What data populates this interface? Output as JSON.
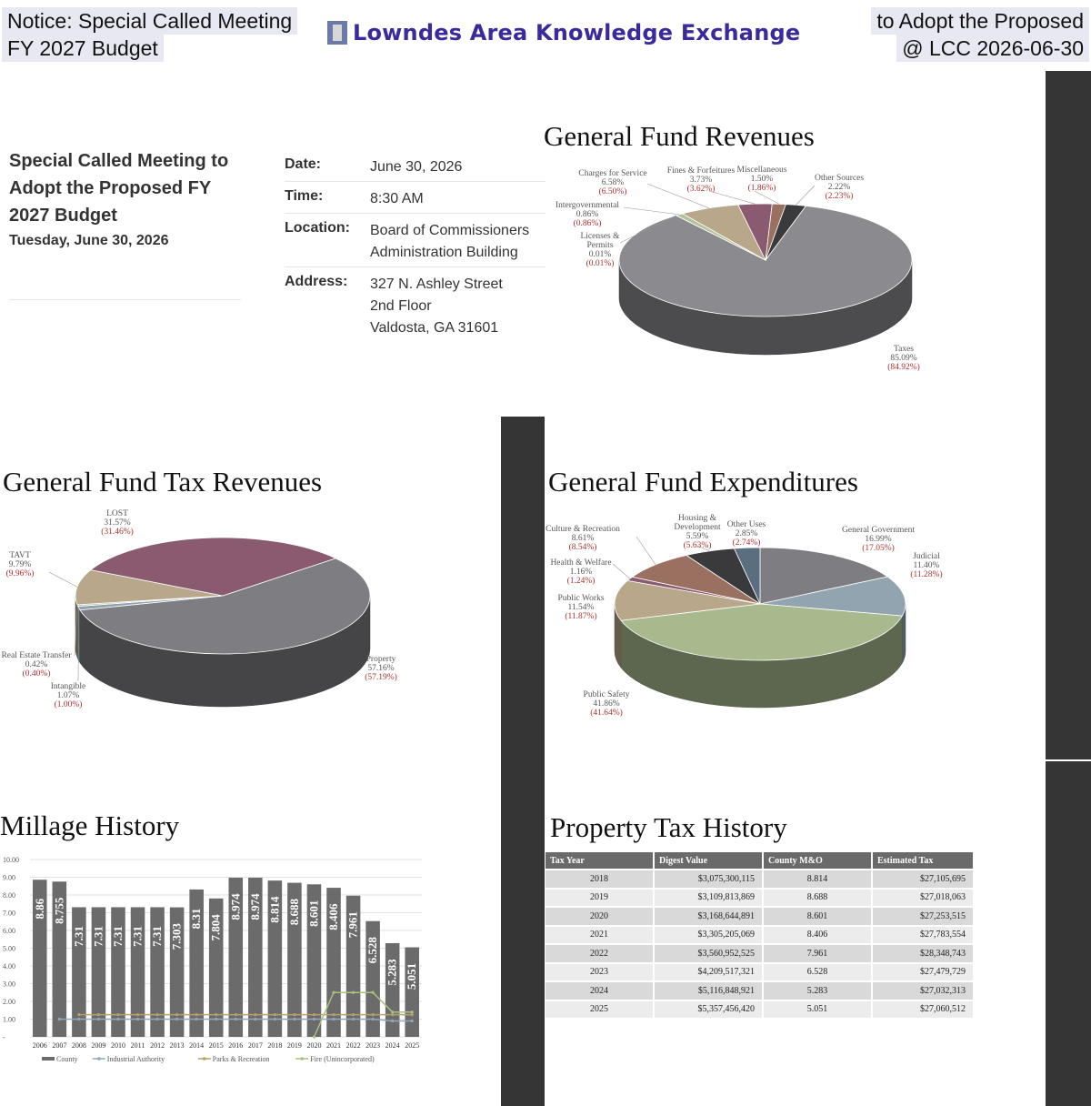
{
  "header": {
    "left_line1": "Notice: Special Called Meeting",
    "left_line2": "FY 2027 Budget",
    "logo_text": "Lowndes Area Knowledge Exchange",
    "right_line1": "to Adopt the Proposed",
    "right_line2": "@ LCC 2026-06-30"
  },
  "meeting": {
    "title": "Special Called Meeting to Adopt the Proposed FY 2027 Budget",
    "day": "Tuesday, June 30, 2026",
    "date_label": "Date:",
    "date_value": "June 30, 2026",
    "time_label": "Time:",
    "time_value": "8:30 AM",
    "location_label": "Location:",
    "location_line1": "Board of Commissioners",
    "location_line2": "Administration Building",
    "address_label": "Address:",
    "address_line1": "327 N. Ashley Street",
    "address_line2": "2nd Floor",
    "address_line3": "Valdosta, GA 31601"
  },
  "chart_data": [
    {
      "type": "pie",
      "title": "General Fund Revenues",
      "slices": [
        {
          "label": "Taxes",
          "value": 85.09,
          "prior": "(84.92%)",
          "color": "#8a8a8f"
        },
        {
          "label": "Licenses & Permits",
          "value": 0.01,
          "prior": "(0.01%)",
          "color": "#8fa3b0"
        },
        {
          "label": "Intergovernmental",
          "value": 0.86,
          "prior": "(0.86%)",
          "color": "#b3c29a"
        },
        {
          "label": "Charges for Service",
          "value": 6.58,
          "prior": "(6.50%)",
          "color": "#b8a78a"
        },
        {
          "label": "Fines & Forfeitures",
          "value": 3.73,
          "prior": "(3.62%)",
          "color": "#8a5a70"
        },
        {
          "label": "Miscellaneous",
          "value": 1.5,
          "prior": "(1.86%)",
          "color": "#9a7060"
        },
        {
          "label": "Other Sources",
          "value": 2.22,
          "prior": "(2.23%)",
          "color": "#3a3a3c"
        }
      ]
    },
    {
      "type": "pie",
      "title": "General Fund Tax Revenues",
      "slices": [
        {
          "label": "Property",
          "value": 57.16,
          "prior": "(57.19%)",
          "color": "#7d7d82"
        },
        {
          "label": "Intangible",
          "value": 1.07,
          "prior": "(1.00%)",
          "color": "#8fa3b0"
        },
        {
          "label": "Real Estate Transfer",
          "value": 0.42,
          "prior": "(0.40%)",
          "color": "#b3c29a"
        },
        {
          "label": "TAVT",
          "value": 9.79,
          "prior": "(9.96%)",
          "color": "#b8a78a"
        },
        {
          "label": "LOST",
          "value": 31.57,
          "prior": "(31.46%)",
          "color": "#8a5a70"
        }
      ]
    },
    {
      "type": "pie",
      "title": "General Fund Expenditures",
      "slices": [
        {
          "label": "General Government",
          "value": 16.99,
          "prior": "(17.05%)",
          "color": "#7d7d82"
        },
        {
          "label": "Judicial",
          "value": 11.4,
          "prior": "(11.28%)",
          "color": "#92a4b0"
        },
        {
          "label": "Public Safety",
          "value": 41.86,
          "prior": "(41.64%)",
          "color": "#a9b98e"
        },
        {
          "label": "Public Works",
          "value": 11.54,
          "prior": "(11.87%)",
          "color": "#b8a78a"
        },
        {
          "label": "Health & Welfare",
          "value": 1.16,
          "prior": "(1.24%)",
          "color": "#8a5a70"
        },
        {
          "label": "Culture & Recreation",
          "value": 8.61,
          "prior": "(8.54%)",
          "color": "#9a7060"
        },
        {
          "label": "Housing & Development",
          "value": 5.59,
          "prior": "(5.63%)",
          "color": "#3a3a3c"
        },
        {
          "label": "Other Uses",
          "value": 2.85,
          "prior": "(2.74%)",
          "color": "#5a6e80"
        }
      ]
    },
    {
      "type": "bar",
      "title": "Millage History",
      "categories": [
        "2006",
        "2007",
        "2008",
        "2009",
        "2010",
        "2011",
        "2012",
        "2013",
        "2014",
        "2015",
        "2016",
        "2017",
        "2018",
        "2019",
        "2020",
        "2021",
        "2022",
        "2023",
        "2024",
        "2025"
      ],
      "series": [
        {
          "name": "County",
          "type": "bar",
          "color": "#6b6b6b",
          "values": [
            8.86,
            8.755,
            7.31,
            7.31,
            7.31,
            7.31,
            7.31,
            7.303,
            8.31,
            7.804,
            8.974,
            8.974,
            8.814,
            8.688,
            8.601,
            8.406,
            7.961,
            6.528,
            5.283,
            5.051
          ]
        },
        {
          "name": "Industrial Authority",
          "type": "line",
          "color": "#8fa8c0",
          "values": [
            null,
            1.0,
            1.0,
            1.0,
            1.0,
            1.0,
            1.0,
            1.0,
            1.0,
            1.0,
            1.0,
            1.0,
            1.0,
            1.0,
            1.0,
            1.0,
            1.0,
            1.0,
            0.9,
            0.9
          ]
        },
        {
          "name": "Parks & Recreation",
          "type": "line",
          "color": "#b8a06a",
          "values": [
            null,
            null,
            1.25,
            1.25,
            1.25,
            1.25,
            1.25,
            1.25,
            1.25,
            1.25,
            1.25,
            1.25,
            1.25,
            1.25,
            1.25,
            1.25,
            1.25,
            1.25,
            1.25,
            1.25
          ]
        },
        {
          "name": "Fire (Unincorporated)",
          "type": "line",
          "color": "#a8c080",
          "values": [
            null,
            null,
            null,
            null,
            null,
            null,
            null,
            null,
            null,
            null,
            null,
            null,
            null,
            null,
            0,
            2.5,
            2.5,
            2.5,
            1.4,
            1.4
          ]
        }
      ],
      "yticks": [
        "10.00",
        "9.00",
        "8.00",
        "7.00",
        "6.00",
        "5.00",
        "4.00",
        "3.00",
        "2.00",
        "1.00",
        "-"
      ],
      "ylim": [
        0,
        10
      ],
      "legend": "bottom"
    },
    {
      "type": "table",
      "title": "Property Tax History",
      "columns": [
        "Tax Year",
        "Digest Value",
        "County M&O",
        "Estimated Tax"
      ],
      "rows": [
        [
          "2018",
          "$3,075,300,115",
          "8.814",
          "$27,105,695"
        ],
        [
          "2019",
          "$3,109,813,869",
          "8.688",
          "$27,018,063"
        ],
        [
          "2020",
          "$3,168,644,891",
          "8.601",
          "$27,253,515"
        ],
        [
          "2021",
          "$3,305,205,069",
          "8.406",
          "$27,783,554"
        ],
        [
          "2022",
          "$3,560,952,525",
          "7.961",
          "$28,348,743"
        ],
        [
          "2023",
          "$4,209,517,321",
          "6.528",
          "$27,479,729"
        ],
        [
          "2024",
          "$5,116,848,921",
          "5.283",
          "$27,032,313"
        ],
        [
          "2025",
          "$5,357,456,420",
          "5.051",
          "$27,060,512"
        ]
      ]
    }
  ]
}
